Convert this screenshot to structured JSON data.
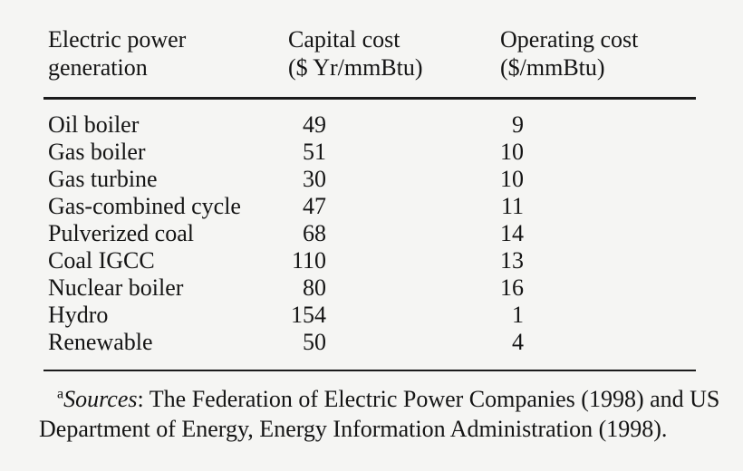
{
  "colors": {
    "background": "#f5f5f3",
    "text": "#141414",
    "rule": "#1b1b1b"
  },
  "table": {
    "headers": [
      {
        "line1": "Electric power",
        "line2": "generation"
      },
      {
        "line1": "Capital cost",
        "line2": "($ Yr/mmBtu)"
      },
      {
        "line1": "Operating cost",
        "line2": "($/mmBtu)"
      }
    ],
    "rows": [
      {
        "name": "Oil boiler",
        "capital": "49",
        "operating": "9"
      },
      {
        "name": "Gas boiler",
        "capital": "51",
        "operating": "10"
      },
      {
        "name": "Gas turbine",
        "capital": "30",
        "operating": "10"
      },
      {
        "name": "Gas-combined cycle",
        "capital": "47",
        "operating": "11"
      },
      {
        "name": "Pulverized coal",
        "capital": "68",
        "operating": "14"
      },
      {
        "name": "Coal IGCC",
        "capital": "110",
        "operating": "13"
      },
      {
        "name": "Nuclear boiler",
        "capital": "80",
        "operating": "16"
      },
      {
        "name": "Hydro",
        "capital": "154",
        "operating": "1"
      },
      {
        "name": "Renewable",
        "capital": "50",
        "operating": "4"
      }
    ]
  },
  "footnote": {
    "marker": "a",
    "source_label": "Sources",
    "line1_rest": ": The Federation of Electric Power Companies (1998) and US",
    "line2": "Department of Energy, Energy Information Administration (1998)."
  }
}
